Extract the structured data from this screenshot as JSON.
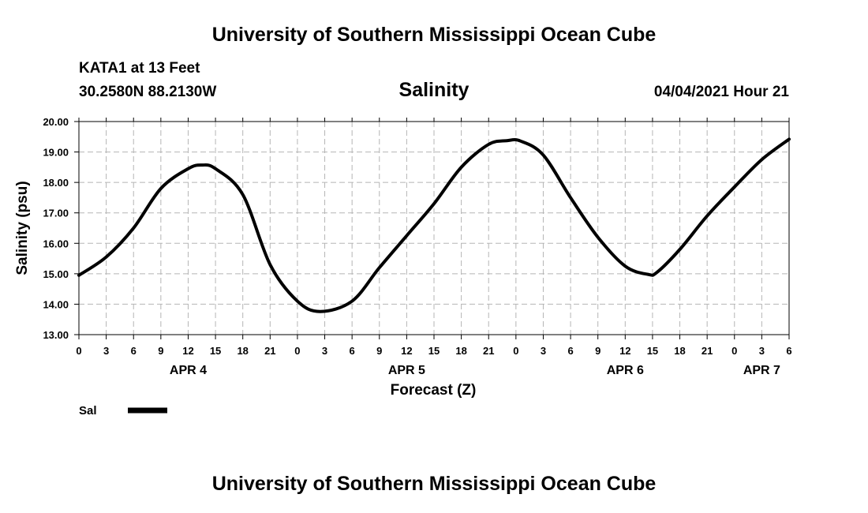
{
  "header": {
    "title": "University of Southern Mississippi Ocean Cube",
    "station": "KATA1 at 13 Feet",
    "coordinates": "30.2580N  88.2130W",
    "datetime": "04/04/2021 Hour 21"
  },
  "footer": {
    "title": "University of Southern Mississippi Ocean Cube"
  },
  "chart_data": {
    "type": "line",
    "title": "Salinity",
    "xlabel": "Forecast (Z)",
    "ylabel": "Salinity (psu)",
    "ylim": [
      13.0,
      20.0
    ],
    "xlim_hours": [
      0,
      78
    ],
    "y_ticks": [
      "13.00",
      "14.00",
      "15.00",
      "16.00",
      "17.00",
      "18.00",
      "19.00",
      "20.00"
    ],
    "x_tick_labels": [
      "0",
      "3",
      "6",
      "9",
      "12",
      "15",
      "18",
      "21",
      "0",
      "3",
      "6",
      "9",
      "12",
      "15",
      "18",
      "21",
      "0",
      "3",
      "6",
      "9",
      "12",
      "15",
      "18",
      "21",
      "0",
      "3",
      "6"
    ],
    "day_labels": [
      {
        "label": "APR 4",
        "hour": 12
      },
      {
        "label": "APR 5",
        "hour": 36
      },
      {
        "label": "APR 6",
        "hour": 60
      },
      {
        "label": "APR 7",
        "hour": 75
      }
    ],
    "grid": true,
    "series": [
      {
        "name": "Sal",
        "color": "#000000",
        "x": [
          0,
          3,
          6,
          9,
          12,
          13.5,
          15,
          18,
          21,
          24,
          26.5,
          30,
          33,
          36,
          39,
          42,
          45,
          47,
          48.5,
          51,
          54,
          57,
          60,
          62.5,
          63.5,
          66,
          69,
          72,
          75,
          78
        ],
        "values": [
          14.95,
          15.55,
          16.5,
          17.8,
          18.45,
          18.57,
          18.45,
          17.6,
          15.3,
          14.1,
          13.76,
          14.1,
          15.2,
          16.25,
          17.3,
          18.5,
          19.25,
          19.37,
          19.36,
          18.9,
          17.5,
          16.2,
          15.25,
          14.98,
          15.05,
          15.8,
          16.9,
          17.85,
          18.75,
          19.42
        ]
      }
    ]
  }
}
